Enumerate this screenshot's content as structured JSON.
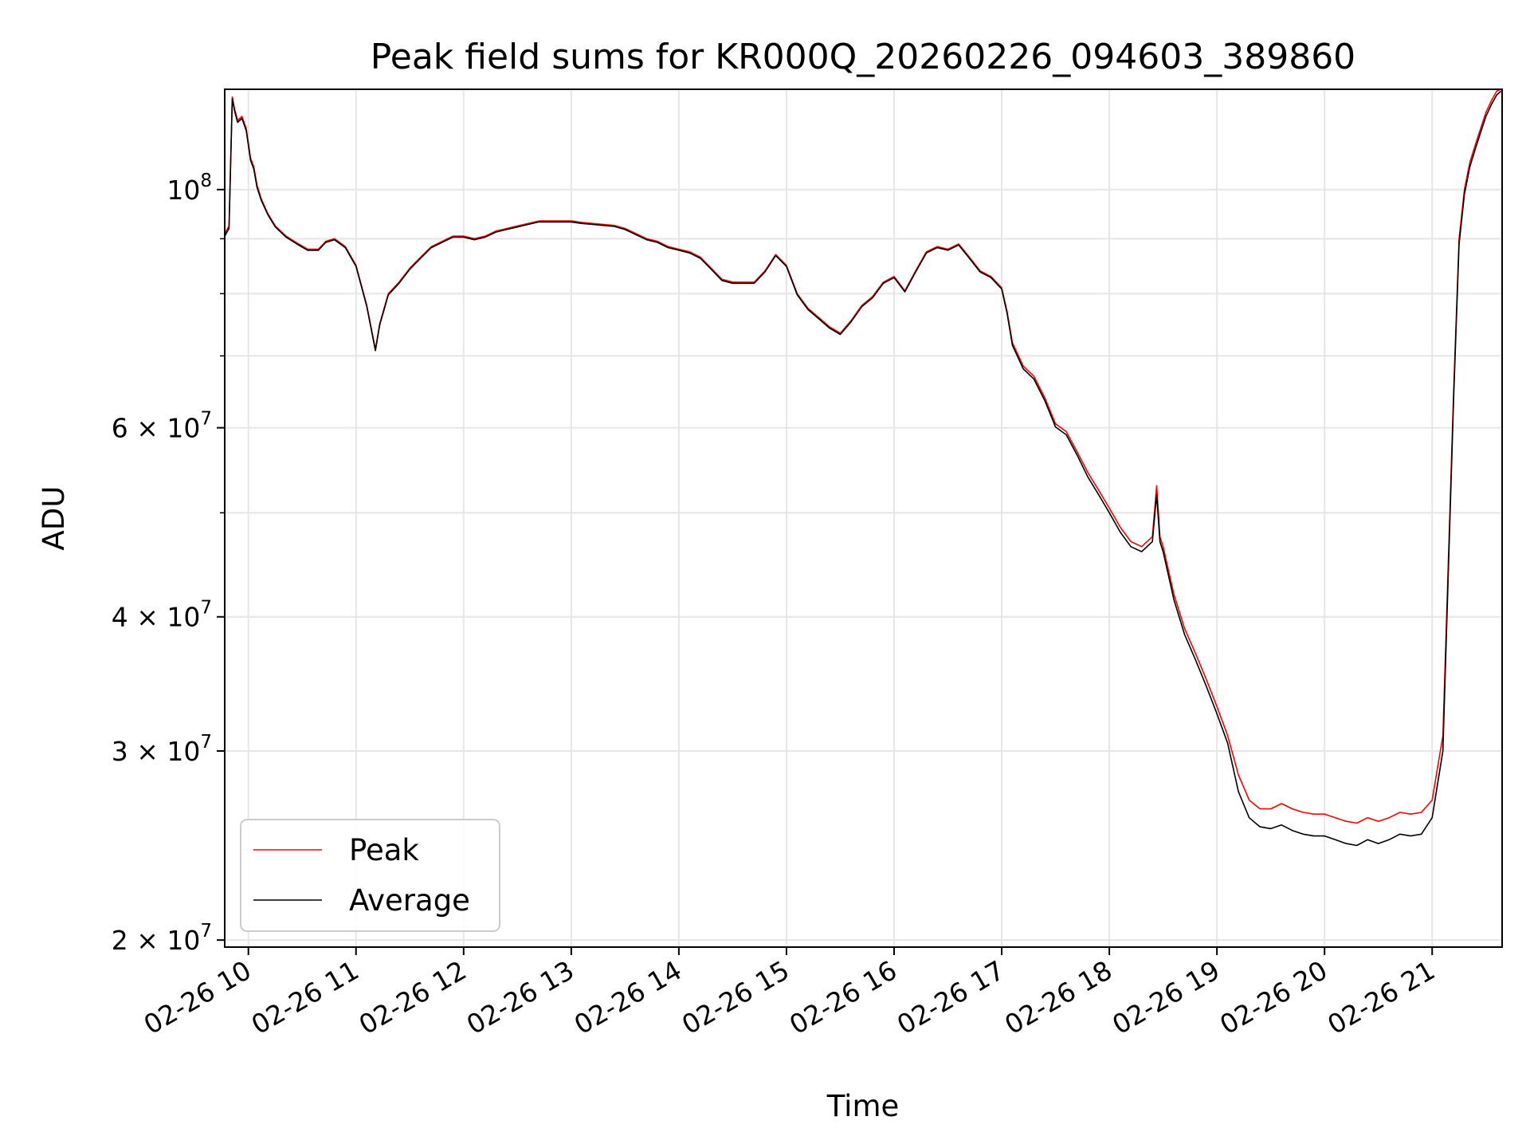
{
  "chart_data": {
    "type": "line",
    "title": "Peak field sums for KR000Q_20260226_094603_389860",
    "xlabel": "Time",
    "ylabel": "ADU",
    "yscale": "log",
    "ylim": [
      19700000,
      124000000
    ],
    "xlim": [
      9.78,
      21.65
    ],
    "grid": true,
    "legend_position": "lower-left",
    "x_ticks": [
      {
        "value": 10,
        "label": "02-26 10"
      },
      {
        "value": 11,
        "label": "02-26 11"
      },
      {
        "value": 12,
        "label": "02-26 12"
      },
      {
        "value": 13,
        "label": "02-26 13"
      },
      {
        "value": 14,
        "label": "02-26 14"
      },
      {
        "value": 15,
        "label": "02-26 15"
      },
      {
        "value": 16,
        "label": "02-26 16"
      },
      {
        "value": 17,
        "label": "02-26 17"
      },
      {
        "value": 18,
        "label": "02-26 18"
      },
      {
        "value": 19,
        "label": "02-26 19"
      },
      {
        "value": 20,
        "label": "02-26 20"
      },
      {
        "value": 21,
        "label": "02-26 21"
      }
    ],
    "y_ticks": [
      {
        "value": 20000000,
        "base": "2 × 10",
        "exp": "7"
      },
      {
        "value": 30000000,
        "base": "3 × 10",
        "exp": "7"
      },
      {
        "value": 40000000,
        "base": "4 × 10",
        "exp": "7"
      },
      {
        "value": 60000000,
        "base": "6 × 10",
        "exp": "7"
      },
      {
        "value": 100000000,
        "base": "10",
        "exp": "8"
      }
    ],
    "y_minor_ticks": [
      50000000,
      70000000,
      80000000,
      90000000
    ],
    "series": [
      {
        "name": "Peak",
        "color": "#ff0000",
        "x": [
          9.78,
          9.82,
          9.85,
          9.87,
          9.9,
          9.94,
          9.98,
          10.02,
          10.05,
          10.08,
          10.12,
          10.18,
          10.25,
          10.35,
          10.45,
          10.55,
          10.65,
          10.72,
          10.8,
          10.9,
          11.0,
          11.1,
          11.18,
          11.22,
          11.3,
          11.4,
          11.5,
          11.6,
          11.7,
          11.8,
          11.9,
          12.0,
          12.1,
          12.2,
          12.3,
          12.4,
          12.5,
          12.6,
          12.7,
          12.8,
          12.9,
          13.0,
          13.1,
          13.2,
          13.3,
          13.4,
          13.5,
          13.6,
          13.7,
          13.8,
          13.9,
          14.0,
          14.1,
          14.2,
          14.3,
          14.4,
          14.5,
          14.6,
          14.7,
          14.8,
          14.9,
          15.0,
          15.1,
          15.2,
          15.3,
          15.4,
          15.5,
          15.6,
          15.7,
          15.8,
          15.9,
          16.0,
          16.1,
          16.2,
          16.3,
          16.4,
          16.5,
          16.6,
          16.7,
          16.8,
          16.9,
          17.0,
          17.05,
          17.1,
          17.2,
          17.3,
          17.4,
          17.5,
          17.6,
          17.7,
          17.8,
          17.9,
          18.0,
          18.1,
          18.2,
          18.3,
          18.4,
          18.44,
          18.47,
          18.5,
          18.6,
          18.7,
          18.8,
          18.9,
          19.0,
          19.1,
          19.2,
          19.3,
          19.4,
          19.5,
          19.6,
          19.7,
          19.8,
          19.9,
          20.0,
          20.1,
          20.2,
          20.3,
          20.4,
          20.5,
          20.6,
          20.7,
          20.8,
          20.9,
          21.0,
          21.1,
          21.15,
          21.2,
          21.25,
          21.3,
          21.35,
          21.4,
          21.45,
          21.5,
          21.55,
          21.6,
          21.64
        ],
        "y": [
          91000000,
          92500000,
          122000000,
          119000000,
          116000000,
          117000000,
          114000000,
          107000000,
          105000000,
          101000000,
          98000000,
          95000000,
          92500000,
          90500000,
          89200000,
          88000000,
          88000000,
          89500000,
          90000000,
          88500000,
          85000000,
          78000000,
          71000000,
          75000000,
          80000000,
          82000000,
          84500000,
          86500000,
          88500000,
          89500000,
          90500000,
          90500000,
          90000000,
          90500000,
          91500000,
          92000000,
          92500000,
          93000000,
          93500000,
          93500000,
          93500000,
          93500000,
          93200000,
          93000000,
          92800000,
          92600000,
          92000000,
          91000000,
          90000000,
          89500000,
          88500000,
          88000000,
          87500000,
          86500000,
          84500000,
          82500000,
          82000000,
          82000000,
          82000000,
          84000000,
          87000000,
          85000000,
          80000000,
          77500000,
          76000000,
          74500000,
          73500000,
          75500000,
          78000000,
          79500000,
          82000000,
          83000000,
          80500000,
          84000000,
          87500000,
          88500000,
          88000000,
          89000000,
          86500000,
          84000000,
          83000000,
          81000000,
          77000000,
          72000000,
          68500000,
          67000000,
          64000000,
          60500000,
          59500000,
          57000000,
          54500000,
          52500000,
          50500000,
          48500000,
          47000000,
          46500000,
          47500000,
          53000000,
          47500000,
          46500000,
          42000000,
          39000000,
          37000000,
          35000000,
          33000000,
          31000000,
          28500000,
          27000000,
          26500000,
          26500000,
          26800000,
          26500000,
          26300000,
          26200000,
          26200000,
          26000000,
          25800000,
          25700000,
          26000000,
          25800000,
          26000000,
          26300000,
          26200000,
          26300000,
          27000000,
          31000000,
          45000000,
          65000000,
          90000000,
          100000000,
          106000000,
          110000000,
          114000000,
          118000000,
          121000000,
          123500000,
          124000000
        ]
      },
      {
        "name": "Average",
        "color": "#000000",
        "x": [
          9.78,
          9.82,
          9.85,
          9.87,
          9.9,
          9.94,
          9.98,
          10.02,
          10.05,
          10.08,
          10.12,
          10.18,
          10.25,
          10.35,
          10.45,
          10.55,
          10.65,
          10.72,
          10.8,
          10.9,
          11.0,
          11.1,
          11.18,
          11.22,
          11.3,
          11.4,
          11.5,
          11.6,
          11.7,
          11.8,
          11.9,
          12.0,
          12.1,
          12.2,
          12.3,
          12.4,
          12.5,
          12.6,
          12.7,
          12.8,
          12.9,
          13.0,
          13.1,
          13.2,
          13.3,
          13.4,
          13.5,
          13.6,
          13.7,
          13.8,
          13.9,
          14.0,
          14.1,
          14.2,
          14.3,
          14.4,
          14.5,
          14.6,
          14.7,
          14.8,
          14.9,
          15.0,
          15.1,
          15.2,
          15.3,
          15.4,
          15.5,
          15.6,
          15.7,
          15.8,
          15.9,
          16.0,
          16.1,
          16.2,
          16.3,
          16.4,
          16.5,
          16.6,
          16.7,
          16.8,
          16.9,
          17.0,
          17.05,
          17.1,
          17.2,
          17.3,
          17.4,
          17.5,
          17.6,
          17.7,
          17.8,
          17.9,
          18.0,
          18.1,
          18.2,
          18.3,
          18.4,
          18.44,
          18.47,
          18.5,
          18.6,
          18.7,
          18.8,
          18.9,
          19.0,
          19.1,
          19.2,
          19.3,
          19.4,
          19.5,
          19.6,
          19.7,
          19.8,
          19.9,
          20.0,
          20.1,
          20.2,
          20.3,
          20.4,
          20.5,
          20.6,
          20.7,
          20.8,
          20.9,
          21.0,
          21.1,
          21.15,
          21.2,
          21.25,
          21.3,
          21.35,
          21.4,
          21.45,
          21.5,
          21.55,
          21.6,
          21.64
        ],
        "y": [
          90500000,
          92000000,
          121500000,
          118500000,
          115500000,
          116500000,
          113500000,
          106500000,
          104500000,
          100500000,
          97700000,
          94800000,
          92300000,
          90300000,
          89000000,
          87800000,
          87800000,
          89300000,
          89800000,
          88300000,
          84800000,
          77800000,
          70800000,
          74800000,
          79800000,
          81800000,
          84300000,
          86300000,
          88300000,
          89300000,
          90300000,
          90300000,
          89800000,
          90300000,
          91300000,
          91800000,
          92300000,
          92800000,
          93300000,
          93300000,
          93300000,
          93300000,
          93000000,
          92800000,
          92600000,
          92400000,
          91800000,
          90800000,
          89800000,
          89300000,
          88300000,
          87800000,
          87300000,
          86300000,
          84300000,
          82300000,
          81800000,
          81800000,
          81800000,
          83800000,
          86800000,
          84800000,
          79800000,
          77300000,
          75800000,
          74300000,
          73300000,
          75300000,
          77800000,
          79300000,
          81800000,
          82800000,
          80300000,
          83800000,
          87300000,
          88300000,
          87800000,
          88800000,
          86300000,
          83800000,
          82800000,
          80800000,
          76700000,
          71600000,
          68100000,
          66600000,
          63600000,
          60100000,
          59100000,
          56600000,
          54000000,
          52000000,
          50000000,
          48000000,
          46500000,
          46000000,
          47000000,
          52000000,
          47000000,
          46000000,
          41500000,
          38500000,
          36500000,
          34500000,
          32500000,
          30500000,
          27500000,
          26000000,
          25500000,
          25400000,
          25600000,
          25300000,
          25100000,
          25000000,
          25000000,
          24800000,
          24600000,
          24500000,
          24800000,
          24600000,
          24800000,
          25100000,
          25000000,
          25100000,
          26000000,
          30000000,
          44000000,
          64000000,
          89000000,
          99000000,
          105000000,
          109000000,
          113000000,
          117000000,
          120000000,
          122500000,
          123500000
        ]
      }
    ]
  }
}
